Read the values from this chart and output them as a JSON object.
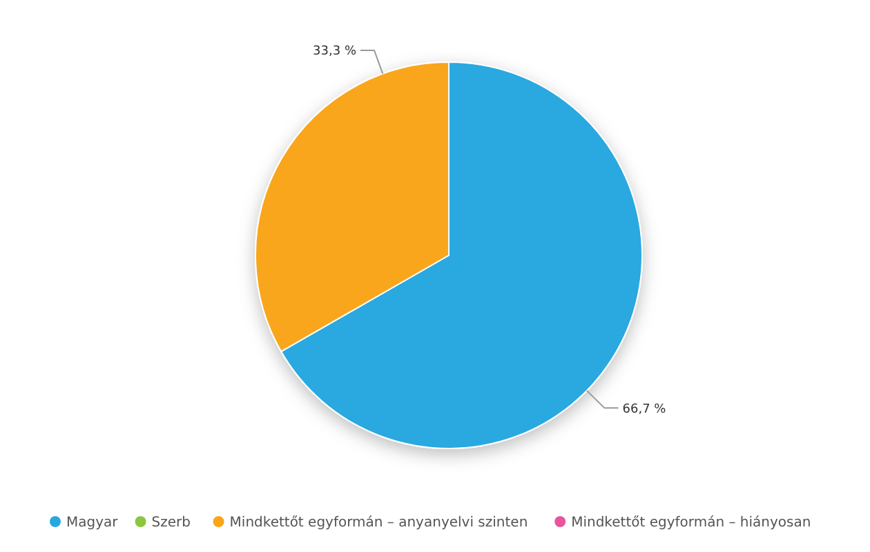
{
  "chart_data": {
    "type": "pie",
    "categories": [
      "Magyar",
      "Szerb",
      "Mindkettőt egyformán – anyanyelvi szinten",
      "Mindkettőt egyformán – hiányosan"
    ],
    "values": [
      66.7,
      0,
      33.3,
      0
    ],
    "colors": [
      "#29a8e0",
      "#8cc63f",
      "#f9a61a",
      "#e8559a"
    ],
    "value_labels": [
      "66,7 %",
      null,
      "33,3 %",
      null
    ],
    "legend": "bottom"
  }
}
